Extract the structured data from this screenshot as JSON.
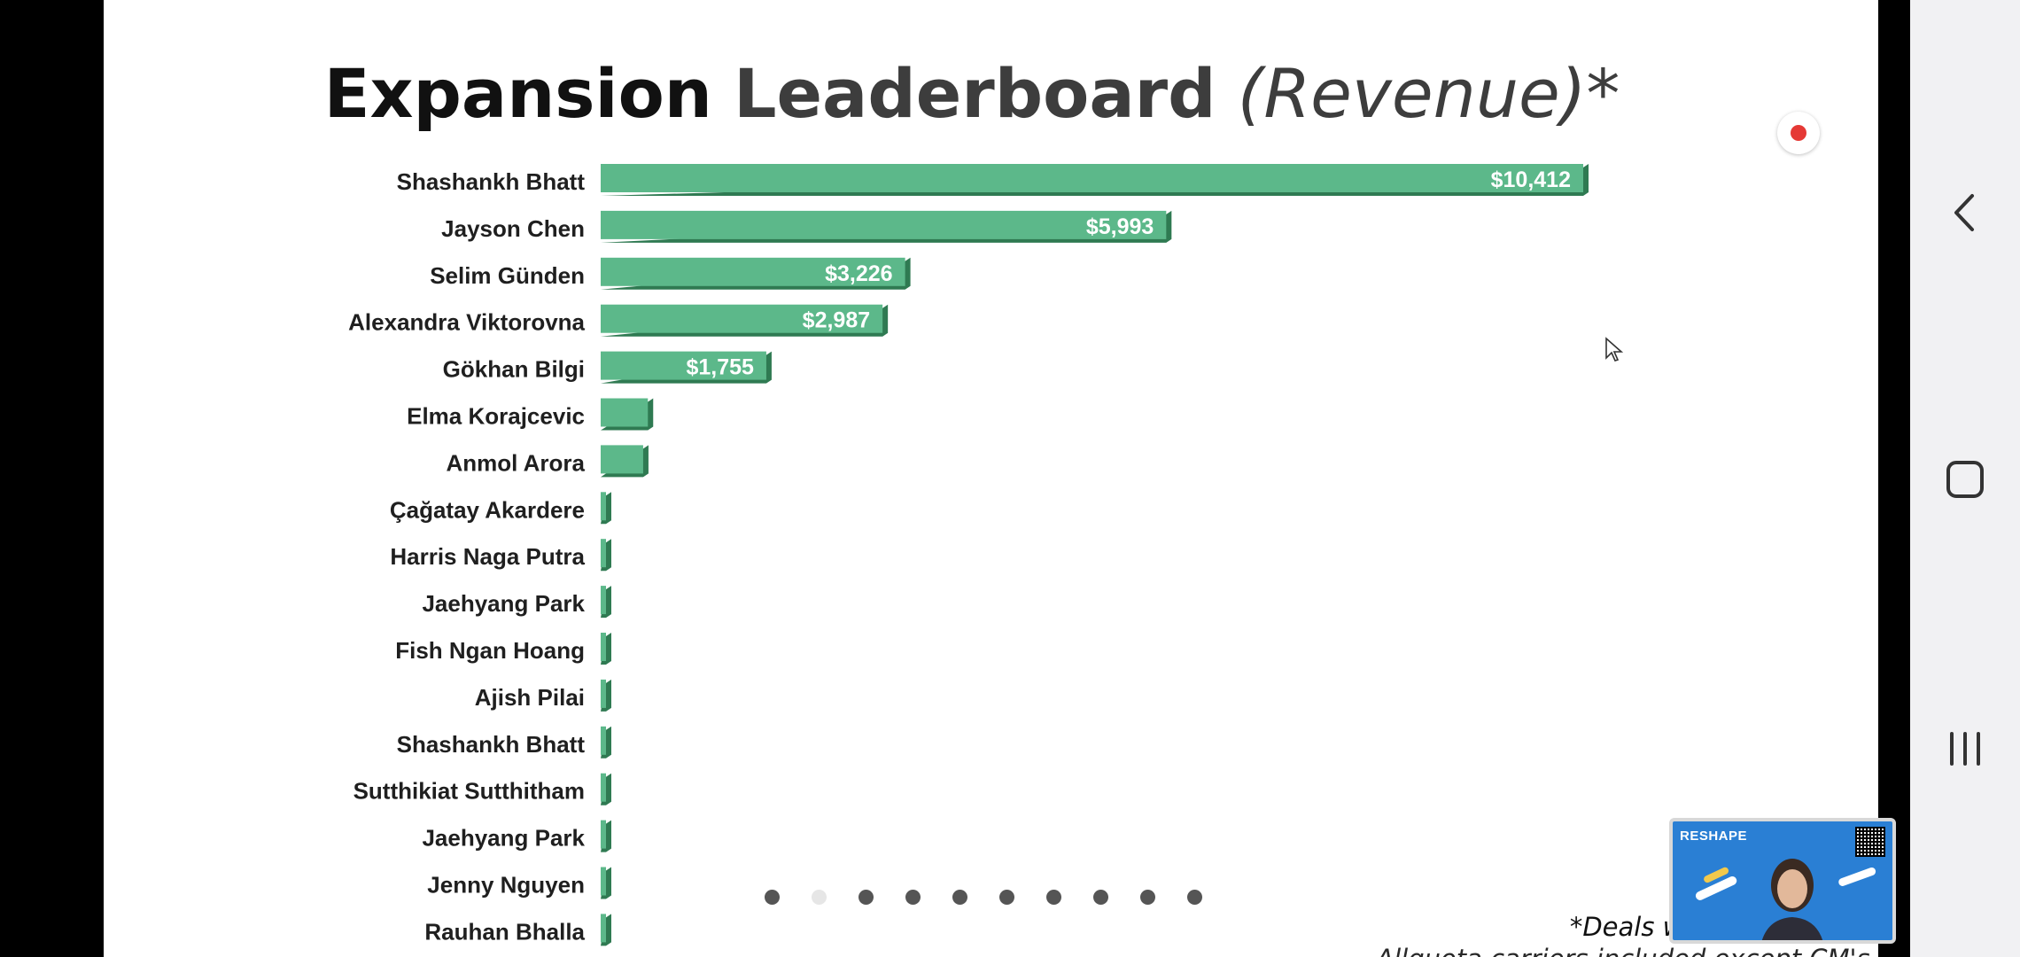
{
  "slide": {
    "title_part1": "Expansion",
    "title_part2": "Leaderboard",
    "title_part3": "(Revenue)*",
    "footnote_line1": "*Deals with the",
    "footnote_line2": "Allquota carriers included except CM's & BD's"
  },
  "chart_data": {
    "type": "bar",
    "orientation": "horizontal",
    "title": "Expansion Leaderboard (Revenue)*",
    "categories": [
      "Shashankh Bhatt",
      "Jayson Chen",
      "Selim Günden",
      "Alexandra Viktorovna",
      "Gökhan Bilgi",
      "Elma Korajcevic",
      "Anmol Arora",
      "Çağatay Akardere",
      "Harris Naga Putra",
      "Jaehyang Park",
      "Fish Ngan Hoang",
      "Ajish Pilai",
      "Shashankh Bhatt",
      "Sutthikiat Sutthitham",
      "Jaehyang Park",
      "Jenny Nguyen",
      "Rauhan Bhalla"
    ],
    "values": [
      10412,
      5993,
      3226,
      2987,
      1755,
      500,
      450,
      20,
      20,
      20,
      20,
      20,
      20,
      20,
      20,
      20,
      20
    ],
    "data_labels": [
      "$10,412",
      "$5,993",
      "$3,226",
      "$2,987",
      "$1,755",
      "",
      "",
      "",
      "",
      "",
      "",
      "",
      "",
      "",
      "",
      "",
      ""
    ],
    "xlim": [
      0,
      10412
    ],
    "bar_color": "#5cb88a",
    "bar_shadow_color": "#2f7a52",
    "grid": false,
    "legend": "none"
  },
  "pagination": {
    "count": 10,
    "active_index": 1
  },
  "pip": {
    "logo_text": "RESHAPE"
  },
  "colors": {
    "background": "#ffffff",
    "navbar": "#f1f1f3",
    "record": "#e53935"
  },
  "icons": {
    "back": "chevron-left-icon",
    "home": "square-icon",
    "recents": "three-bars-icon"
  }
}
